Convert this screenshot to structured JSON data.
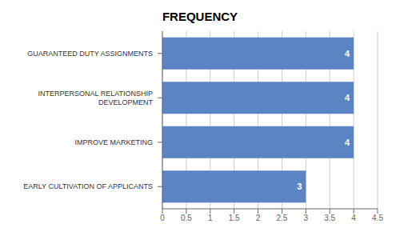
{
  "chart_data": {
    "type": "bar",
    "title": "FREQUENCY",
    "orientation": "horizontal",
    "categories": [
      "EARLY CULTIVATION OF APPLICANTS",
      "IMPROVE MARKETING",
      "INTERPERSONAL RELATIONSHIP\nDEVELOPMENT",
      "GUARANTEED DUTY ASSIGNMENTS"
    ],
    "values": [
      3,
      4,
      4,
      4
    ],
    "color": "#5B84C4",
    "xlim": [
      0,
      4.5
    ],
    "xticks": [
      0,
      0.5,
      1,
      1.5,
      2,
      2.5,
      3,
      3.5,
      4,
      4.5
    ],
    "grid": true,
    "data_labels": true
  }
}
